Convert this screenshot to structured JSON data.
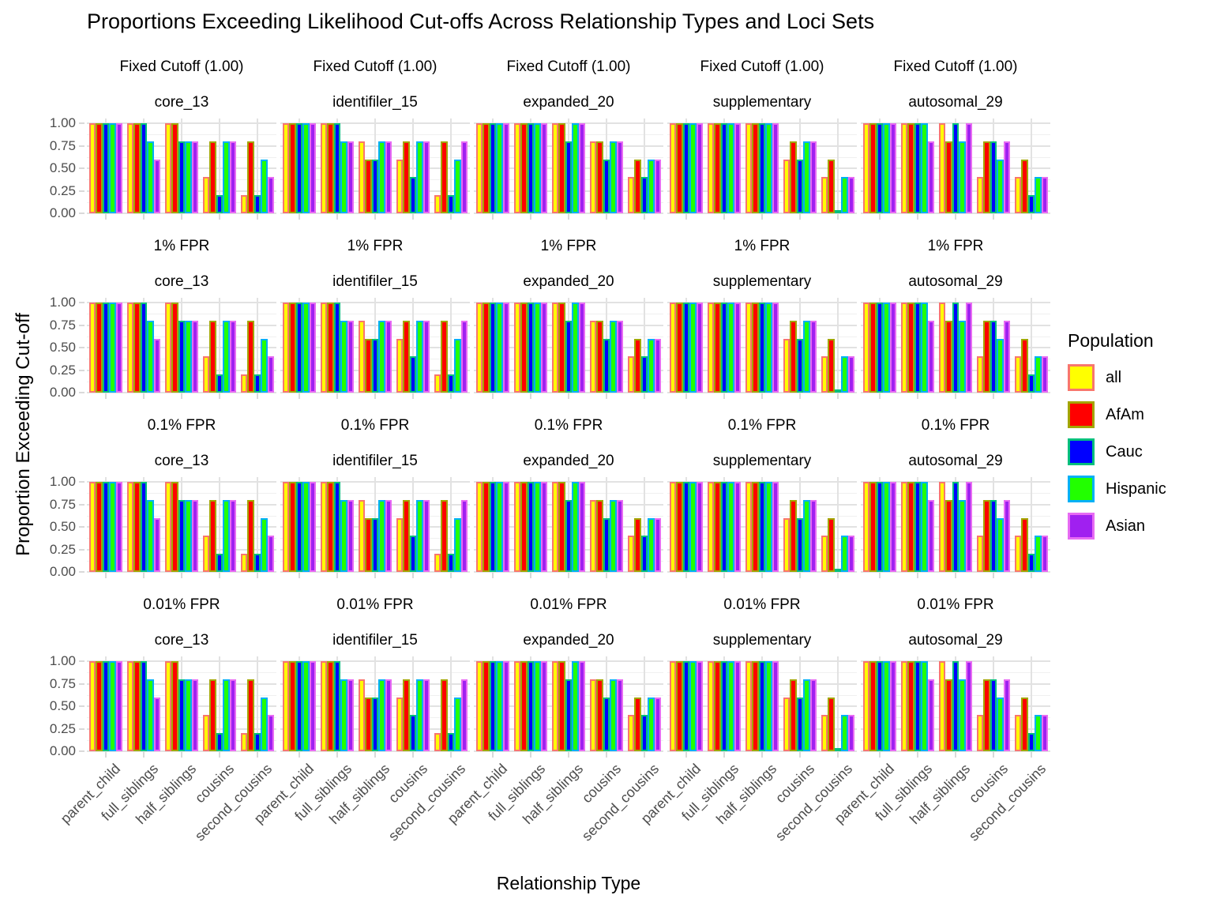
{
  "title": "Proportions Exceeding Likelihood Cut-offs Across Relationship Types and Loci Sets",
  "axes": {
    "x_title": "Relationship Type",
    "y_title": "Proportion Exceeding Cut-off",
    "y_ticks": [
      "1.00",
      "0.75",
      "0.50",
      "0.25",
      "0.00"
    ],
    "x_categories": [
      "parent_child",
      "full_siblings",
      "half_siblings",
      "cousins",
      "second_cousins"
    ]
  },
  "legend": {
    "title": "Population",
    "entries": [
      {
        "label": "all",
        "fill": "#FFFF00",
        "border": "#F8766D"
      },
      {
        "label": "AfAm",
        "fill": "#FF0000",
        "border": "#A3A500"
      },
      {
        "label": "Cauc",
        "fill": "#0000FF",
        "border": "#00BF7D"
      },
      {
        "label": "Hispanic",
        "fill": "#22FF00",
        "border": "#00B0F6"
      },
      {
        "label": "Asian",
        "fill": "#A020F0",
        "border": "#E76BF3"
      }
    ]
  },
  "chart_data": {
    "type": "bar",
    "grouped": true,
    "categories": [
      "parent_child",
      "full_siblings",
      "half_siblings",
      "cousins",
      "second_cousins"
    ],
    "populations": [
      "all",
      "AfAm",
      "Cauc",
      "Hispanic",
      "Asian"
    ],
    "row_facets": [
      "Fixed Cutoff (1.00)",
      "1% FPR",
      "0.1% FPR",
      "0.01% FPR"
    ],
    "col_facets": [
      "core_13",
      "identifiler_15",
      "expanded_20",
      "supplementary",
      "autosomal_29"
    ],
    "title": "Proportions Exceeding Likelihood Cut-offs Across Relationship Types and Loci Sets",
    "xlabel": "Relationship Type",
    "ylabel": "Proportion Exceeding Cut-off",
    "ylim": [
      0,
      1
    ],
    "grid": true,
    "legend_position": "right",
    "note": "Bar values (ordered all, AfAm, Cauc, Hispanic, Asian) are identical across the four row facets (cut-off types); they vary only by loci-set column.",
    "values": {
      "core_13": {
        "parent_child": [
          1.0,
          1.0,
          1.0,
          1.0,
          1.0
        ],
        "full_siblings": [
          1.0,
          1.0,
          1.0,
          0.8,
          0.6
        ],
        "half_siblings": [
          1.0,
          1.0,
          0.8,
          0.8,
          0.8
        ],
        "cousins": [
          0.4,
          0.8,
          0.2,
          0.8,
          0.8
        ],
        "second_cousins": [
          0.2,
          0.8,
          0.2,
          0.6,
          0.4
        ]
      },
      "identifiler_15": {
        "parent_child": [
          1.0,
          1.0,
          1.0,
          1.0,
          1.0
        ],
        "full_siblings": [
          1.0,
          1.0,
          1.0,
          0.8,
          0.8
        ],
        "half_siblings": [
          0.8,
          0.6,
          0.6,
          0.8,
          0.8
        ],
        "cousins": [
          0.6,
          0.8,
          0.4,
          0.8,
          0.8
        ],
        "second_cousins": [
          0.2,
          0.8,
          0.2,
          0.6,
          0.8
        ]
      },
      "expanded_20": {
        "parent_child": [
          1.0,
          1.0,
          1.0,
          1.0,
          1.0
        ],
        "full_siblings": [
          1.0,
          1.0,
          1.0,
          1.0,
          1.0
        ],
        "half_siblings": [
          1.0,
          1.0,
          0.8,
          1.0,
          1.0
        ],
        "cousins": [
          0.8,
          0.8,
          0.6,
          0.8,
          0.8
        ],
        "second_cousins": [
          0.4,
          0.6,
          0.4,
          0.6,
          0.6
        ]
      },
      "supplementary": {
        "parent_child": [
          1.0,
          1.0,
          1.0,
          1.0,
          1.0
        ],
        "full_siblings": [
          1.0,
          1.0,
          1.0,
          1.0,
          1.0
        ],
        "half_siblings": [
          1.0,
          1.0,
          1.0,
          1.0,
          1.0
        ],
        "cousins": [
          0.6,
          0.8,
          0.6,
          0.8,
          0.8
        ],
        "second_cousins": [
          0.4,
          0.6,
          0.0,
          0.4,
          0.4
        ]
      },
      "autosomal_29": {
        "parent_child": [
          1.0,
          1.0,
          1.0,
          1.0,
          1.0
        ],
        "full_siblings": [
          1.0,
          1.0,
          1.0,
          1.0,
          0.8
        ],
        "half_siblings": [
          1.0,
          0.8,
          1.0,
          0.8,
          1.0
        ],
        "cousins": [
          0.4,
          0.8,
          0.8,
          0.6,
          0.8
        ],
        "second_cousins": [
          0.4,
          0.6,
          0.2,
          0.4,
          0.4
        ]
      }
    }
  }
}
